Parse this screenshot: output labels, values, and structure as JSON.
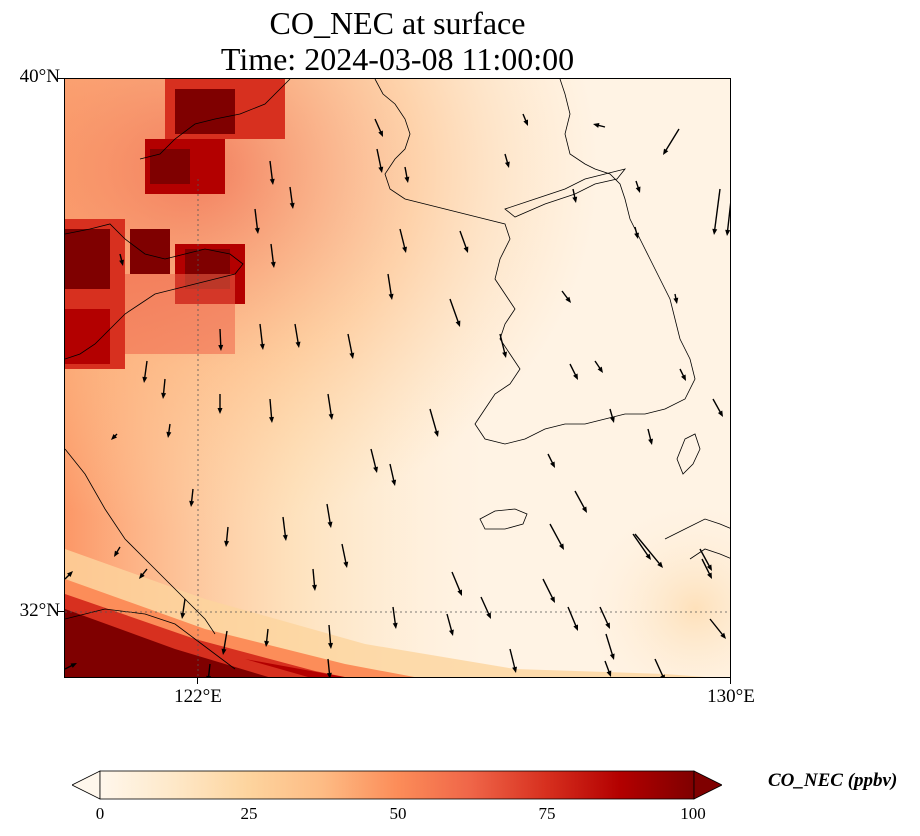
{
  "title": {
    "line1": "CO_NEC at surface",
    "line2": "Time: 2024-03-08 11:00:00"
  },
  "axes": {
    "y_ticks": [
      "40°N",
      "32°N"
    ],
    "x_ticks": [
      "122°E",
      "130°E"
    ],
    "lat_range": [
      31,
      40
    ],
    "lon_range": [
      120,
      130
    ],
    "gridlines": {
      "lat": 32,
      "lon": 122,
      "style": "dotted"
    }
  },
  "colorbar": {
    "label": "CO_NEC (ppbv)",
    "ticks": [
      "0",
      "25",
      "50",
      "75",
      "100"
    ],
    "range": [
      0,
      100
    ],
    "extend": "both",
    "colormap": "OrRd",
    "colors": [
      "#fff7ec",
      "#fee8c8",
      "#fdd49e",
      "#fdbb84",
      "#fc8d59",
      "#ef6548",
      "#d7301f",
      "#b30000",
      "#7f0000"
    ]
  },
  "features": {
    "landmasses": [
      "China coast",
      "Liaodong / Shandong peninsulas",
      "Korean Peninsula",
      "Jeju Island",
      "Kyushu tip"
    ],
    "wind_vectors": "southward / south-southeastward flow across domain"
  }
}
